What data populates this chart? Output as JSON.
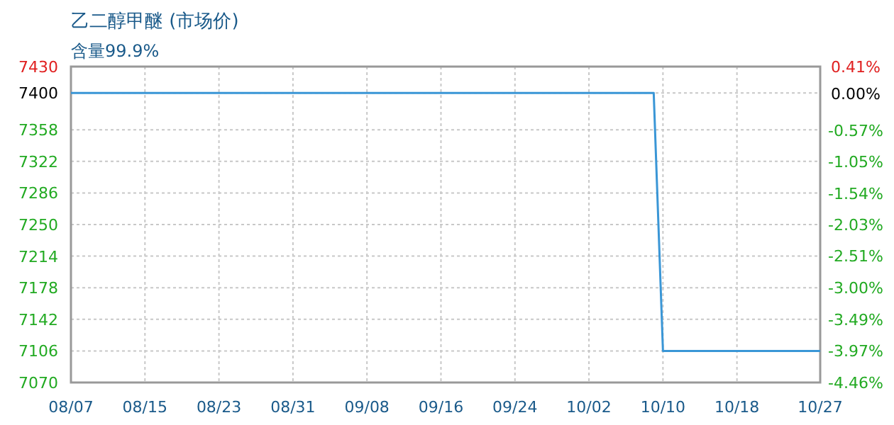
{
  "chart_data": {
    "type": "line",
    "title": "乙二醇甲醚 (市场价)",
    "subtitle": "含量99.9%",
    "series": [
      {
        "color": "#3a96d6",
        "x": [
          "--08-07",
          "--10-09",
          "--10-10",
          "--10-27"
        ],
        "values": [
          7400,
          7400,
          7106,
          7106
        ]
      }
    ],
    "xlim": [
      "--08-07",
      "--10-27"
    ],
    "xticks": [
      {
        "value": "--08-07",
        "label": "08/07"
      },
      {
        "value": "--08-15",
        "label": "08/15"
      },
      {
        "value": "--08-23",
        "label": "08/23"
      },
      {
        "value": "--08-31",
        "label": "08/31"
      },
      {
        "value": "--09-08",
        "label": "09/08"
      },
      {
        "value": "--09-16",
        "label": "09/16"
      },
      {
        "value": "--09-24",
        "label": "09/24"
      },
      {
        "value": "--10-02",
        "label": "10/02"
      },
      {
        "value": "--10-10",
        "label": "10/10"
      },
      {
        "value": "--10-18",
        "label": "10/18"
      },
      {
        "value": "--10-27",
        "label": "10/27"
      }
    ],
    "ylim": [
      7070,
      7430
    ],
    "yticks": [
      7070,
      7106,
      7142,
      7178,
      7214,
      7250,
      7286,
      7322,
      7358,
      7400,
      7430
    ],
    "y2lim": [
      -4.46,
      0.41
    ],
    "y2ticks": [
      {
        "value": -4.46,
        "label": "-4.46%"
      },
      {
        "value": -3.97,
        "label": "-3.97%"
      },
      {
        "value": -3.49,
        "label": "-3.49%"
      },
      {
        "value": -3.0,
        "label": "-3.00%"
      },
      {
        "value": -2.51,
        "label": "-2.51%"
      },
      {
        "value": -2.03,
        "label": "-2.03%"
      },
      {
        "value": -1.54,
        "label": "-1.54%"
      },
      {
        "value": -1.05,
        "label": "-1.05%"
      },
      {
        "value": -0.57,
        "label": "-0.57%"
      },
      {
        "value": 0,
        "label": "0.00%"
      },
      {
        "value": 0.41,
        "label": "0.41%"
      }
    ],
    "grid": true
  }
}
